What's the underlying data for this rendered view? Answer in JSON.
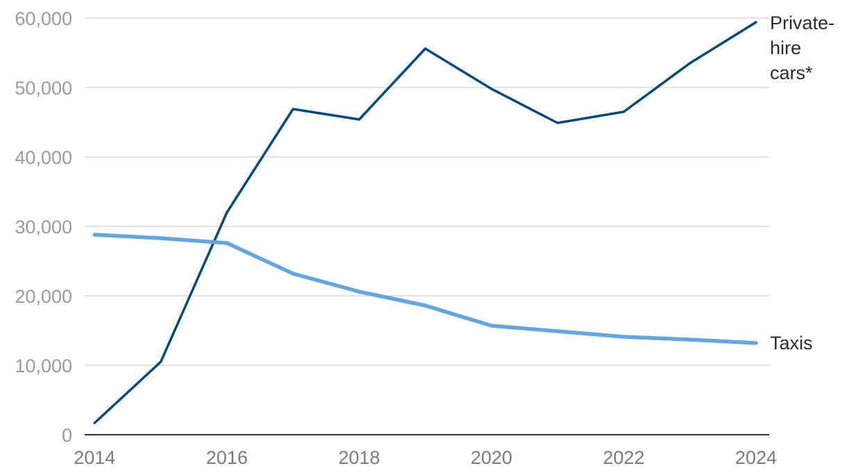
{
  "chart_data": {
    "type": "line",
    "title": "",
    "xlabel": "",
    "ylabel": "",
    "x": [
      2014,
      2015,
      2016,
      2017,
      2018,
      2019,
      2020,
      2021,
      2022,
      2023,
      2024
    ],
    "xlim": [
      2013.85,
      2024.2
    ],
    "ylim": [
      0,
      60000
    ],
    "grid": true,
    "x_ticks": [
      "2014",
      "2016",
      "2018",
      "2020",
      "2022",
      "2024"
    ],
    "y_ticks": [
      "0",
      "10,000",
      "20,000",
      "30,000",
      "40,000",
      "50,000",
      "60,000"
    ],
    "series": [
      {
        "name": "Private-hire cars*",
        "label_lines": [
          "Private-",
          "hire",
          "cars*"
        ],
        "color": "#004a80",
        "values": [
          1700,
          10500,
          32000,
          46900,
          45400,
          55600,
          49800,
          44900,
          46500,
          53500,
          59400
        ]
      },
      {
        "name": "Taxis",
        "label_lines": [
          "Taxis"
        ],
        "color": "#62a5e0",
        "values": [
          28800,
          28300,
          27600,
          23200,
          20600,
          18600,
          15700,
          14900,
          14100,
          13700,
          13200
        ]
      }
    ]
  }
}
